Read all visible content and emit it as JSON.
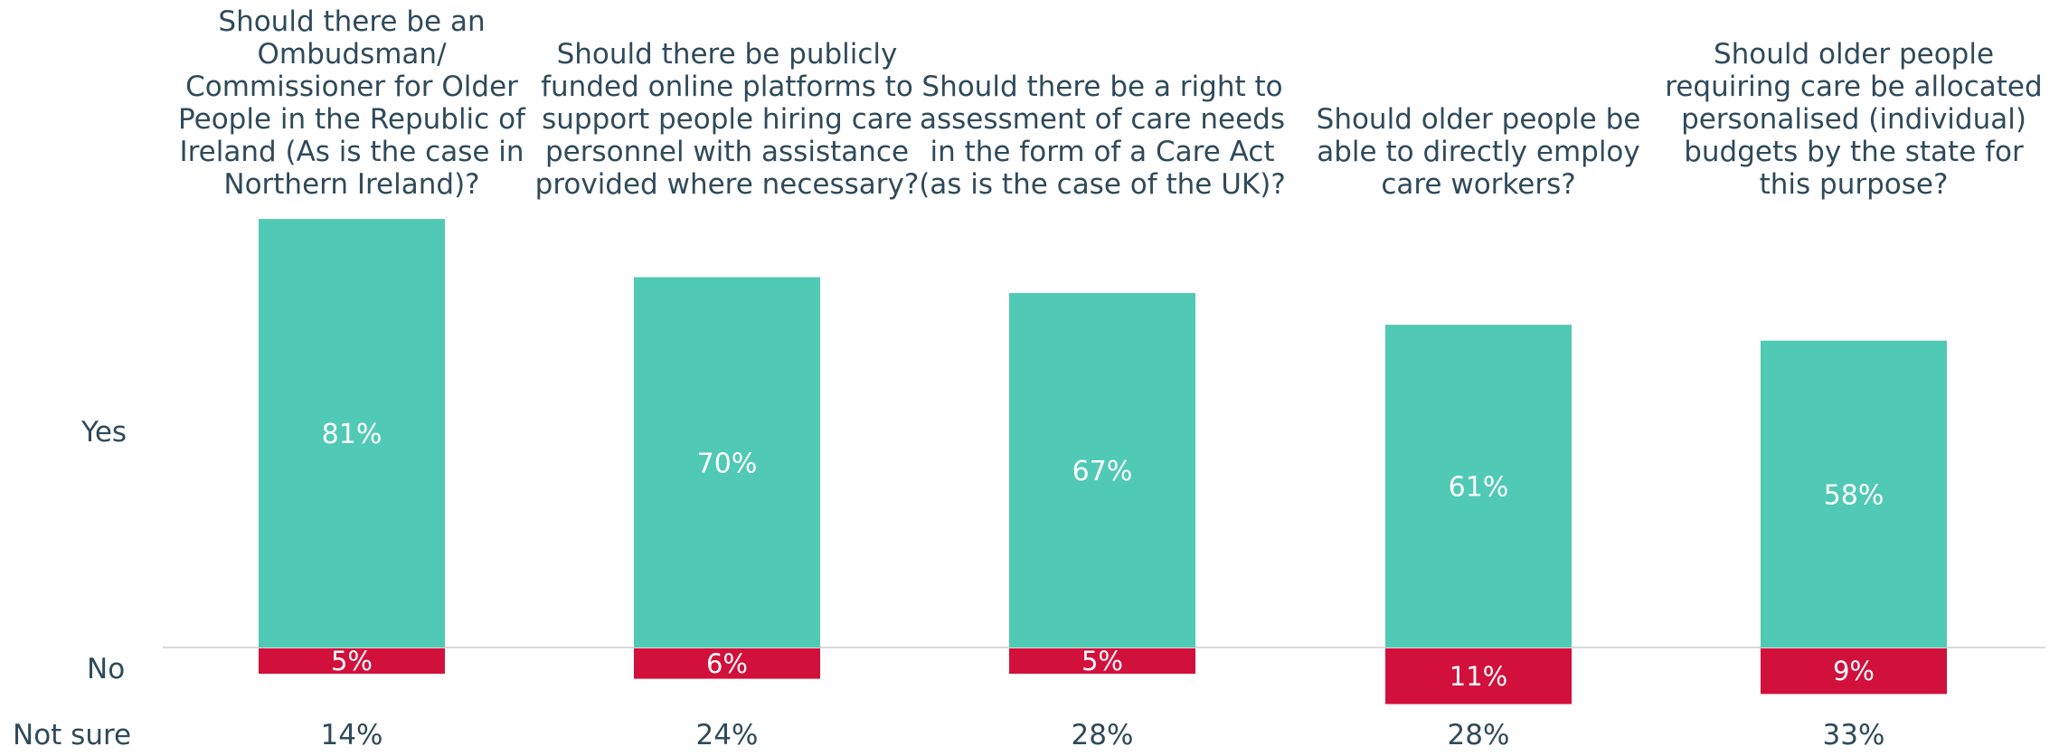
{
  "row_labels": {
    "yes": "Yes",
    "no": "No",
    "not_sure": "Not sure"
  },
  "colors": {
    "yes": "#50c9b5",
    "no": "#d2103c",
    "baseline": "#d9d9d9",
    "text": "#2f4a5a"
  },
  "chart_data": {
    "type": "bar",
    "stacked": "diverging",
    "categories": [
      "Should there be an\nOmbudsman/\nCommissioner for Older\nPeople in the Republic of\nIreland (As is the case in\nNorthern Ireland)?",
      "Should there be publicly\nfunded online platforms to\nsupport people hiring care\npersonnel with assistance\nprovided where necessary?",
      "Should there be a right to\nassessment of care needs\nin the form of a Care Act\n(as is the case of the UK)?",
      "Should older people be\nable to directly employ\ncare workers?",
      "Should older people\nrequiring care be allocated\npersonalised (individual)\nbudgets by the state for\nthis purpose?"
    ],
    "series": [
      {
        "name": "Yes",
        "values": [
          81,
          70,
          67,
          61,
          58
        ],
        "labels": [
          "81%",
          "70%",
          "67%",
          "61%",
          "58%"
        ]
      },
      {
        "name": "No",
        "values": [
          5,
          6,
          5,
          11,
          9
        ],
        "labels": [
          "5%",
          "6%",
          "5%",
          "11%",
          "9%"
        ]
      },
      {
        "name": "Not sure",
        "values": [
          14,
          24,
          28,
          28,
          33
        ],
        "labels": [
          "14%",
          "24%",
          "28%",
          "28%",
          "33%"
        ]
      }
    ],
    "title": "",
    "xlabel": "",
    "ylabel": "",
    "grid": false,
    "legend": "none"
  }
}
